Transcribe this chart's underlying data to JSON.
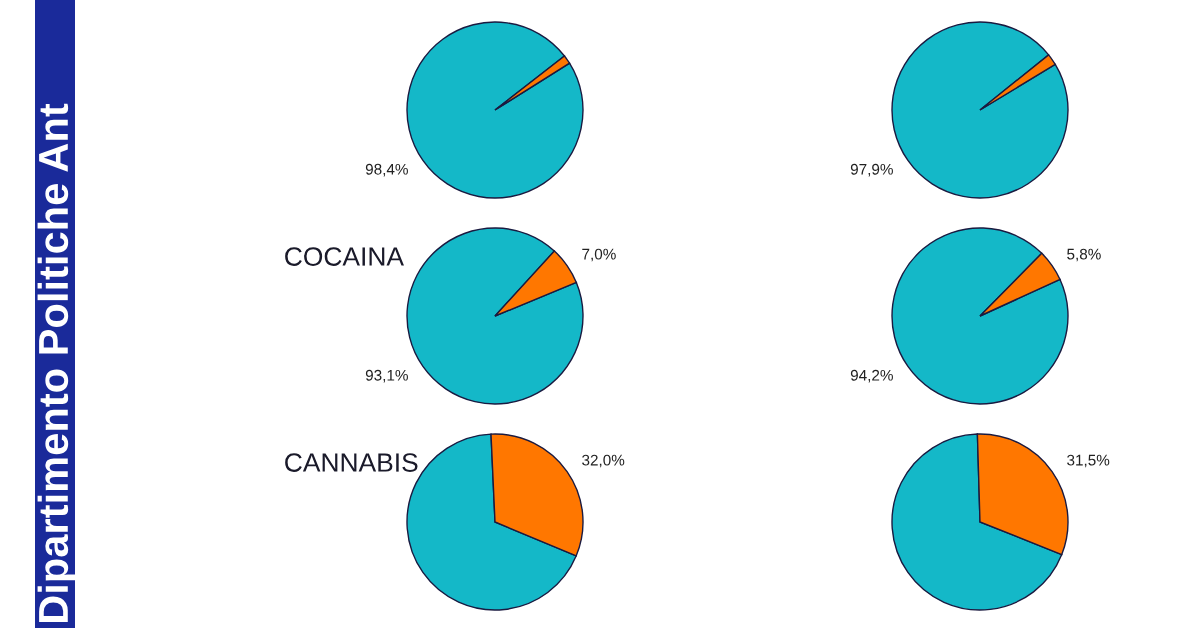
{
  "chart_data": [
    {
      "type": "other",
      "annotations": [
        "Dipartimento Politiche Ant"
      ]
    },
    {
      "type": "pie",
      "categories": [
        null,
        null
      ],
      "values": [
        98.4,
        1.6
      ],
      "colors": [
        "#14b8c8",
        "#ff7700"
      ],
      "value_labels": [
        "98,4%",
        null
      ]
    },
    {
      "type": "pie",
      "categories": [
        null,
        null
      ],
      "values": [
        97.9,
        2.1
      ],
      "colors": [
        "#14b8c8",
        "#ff7700"
      ],
      "value_labels": [
        "97,9%",
        null
      ]
    },
    {
      "type": "pie",
      "title": "COCAINA",
      "categories": [
        null,
        null
      ],
      "values": [
        93.1,
        7.0
      ],
      "colors": [
        "#14b8c8",
        "#ff7700"
      ],
      "value_labels": [
        "93,1%",
        "7,0%"
      ]
    },
    {
      "type": "pie",
      "categories": [
        null,
        null
      ],
      "values": [
        94.2,
        5.8
      ],
      "colors": [
        "#14b8c8",
        "#ff7700"
      ],
      "value_labels": [
        "94,2%",
        "5,8%"
      ]
    },
    {
      "type": "pie",
      "title": "CANNABIS",
      "categories": [
        null,
        null
      ],
      "values": [
        68.0,
        32.0
      ],
      "colors": [
        "#14b8c8",
        "#ff7700"
      ],
      "value_labels": [
        null,
        "32,0%"
      ]
    },
    {
      "type": "pie",
      "categories": [
        null,
        null
      ],
      "values": [
        68.5,
        31.5
      ],
      "colors": [
        "#14b8c8",
        "#ff7700"
      ],
      "value_labels": [
        null,
        "31,5%"
      ]
    }
  ]
}
